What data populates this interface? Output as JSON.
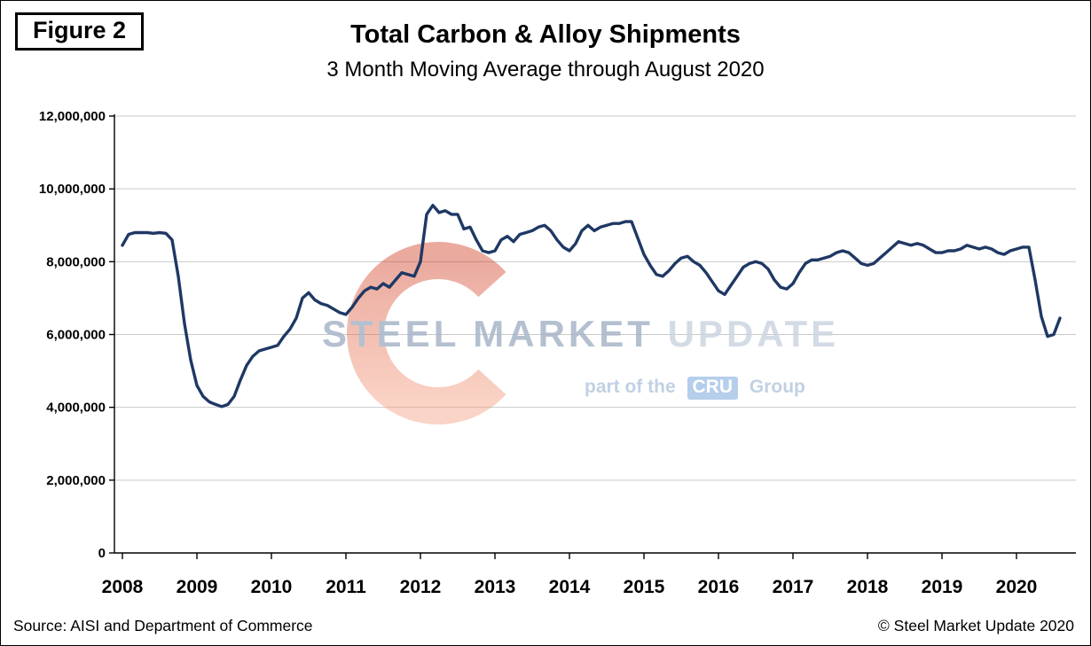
{
  "figure_label": "Figure 2",
  "header": {
    "title": "Total Carbon & Alloy Shipments",
    "subtitle": "3 Month Moving Average through August 2020"
  },
  "watermark": {
    "brand_steel": "STEEL",
    "brand_market": "MARKET",
    "brand_update": "UPDATE",
    "tagline_prefix": "part of the",
    "tagline_cru": "CRU",
    "tagline_suffix": "Group",
    "logo_color_top": "#d0391d",
    "logo_color_bottom": "#f59b7a"
  },
  "footer": {
    "source": "Source: AISI and Department of Commerce",
    "copyright": "© Steel Market Update 2020"
  },
  "chart_data": {
    "type": "line",
    "title": "Total Carbon & Alloy Shipments",
    "subtitle": "3 Month Moving Average through August 2020",
    "x_start": "2008-01",
    "x_end": "2020-08",
    "x_tick_labels": [
      "2008",
      "2009",
      "2010",
      "2011",
      "2012",
      "2013",
      "2014",
      "2015",
      "2016",
      "2017",
      "2018",
      "2019",
      "2020"
    ],
    "y_tick_labels": [
      "0",
      "2,000,000",
      "4,000,000",
      "6,000,000",
      "8,000,000",
      "10,000,000",
      "12,000,000"
    ],
    "ylim": [
      0,
      12000000
    ],
    "y_grid_step": 2000000,
    "grid": true,
    "legend": "none",
    "line_color": "#1f3864",
    "grid_color": "#c9c9c9",
    "axis_color": "#000000",
    "series": [
      {
        "name": "Total Carbon & Alloy Shipments (3-month moving average, tons)",
        "start_month": "2008-01",
        "values": [
          8450000,
          8750000,
          8800000,
          8800000,
          8800000,
          8780000,
          8800000,
          8780000,
          8600000,
          7600000,
          6300000,
          5300000,
          4600000,
          4300000,
          4150000,
          4080000,
          4020000,
          4080000,
          4300000,
          4750000,
          5150000,
          5400000,
          5550000,
          5600000,
          5650000,
          5700000,
          5950000,
          6150000,
          6450000,
          7000000,
          7150000,
          6950000,
          6850000,
          6800000,
          6700000,
          6600000,
          6550000,
          6750000,
          7000000,
          7200000,
          7300000,
          7250000,
          7400000,
          7300000,
          7500000,
          7700000,
          7650000,
          7600000,
          8000000,
          9300000,
          9550000,
          9350000,
          9400000,
          9300000,
          9300000,
          8900000,
          8950000,
          8600000,
          8300000,
          8250000,
          8300000,
          8600000,
          8700000,
          8550000,
          8750000,
          8800000,
          8850000,
          8950000,
          9000000,
          8850000,
          8600000,
          8400000,
          8300000,
          8500000,
          8850000,
          9000000,
          8850000,
          8950000,
          9000000,
          9050000,
          9050000,
          9100000,
          9100000,
          8650000,
          8200000,
          7900000,
          7650000,
          7600000,
          7750000,
          7950000,
          8100000,
          8150000,
          8000000,
          7900000,
          7700000,
          7450000,
          7200000,
          7100000,
          7350000,
          7600000,
          7850000,
          7950000,
          8000000,
          7950000,
          7800000,
          7500000,
          7300000,
          7250000,
          7400000,
          7700000,
          7950000,
          8050000,
          8050000,
          8100000,
          8150000,
          8250000,
          8300000,
          8250000,
          8100000,
          7950000,
          7900000,
          7950000,
          8100000,
          8250000,
          8400000,
          8550000,
          8500000,
          8450000,
          8500000,
          8450000,
          8350000,
          8250000,
          8250000,
          8300000,
          8300000,
          8350000,
          8450000,
          8400000,
          8350000,
          8400000,
          8350000,
          8250000,
          8200000,
          8300000,
          8350000,
          8400000,
          8400000,
          7500000,
          6500000,
          5950000,
          6000000,
          6450000
        ]
      }
    ]
  }
}
